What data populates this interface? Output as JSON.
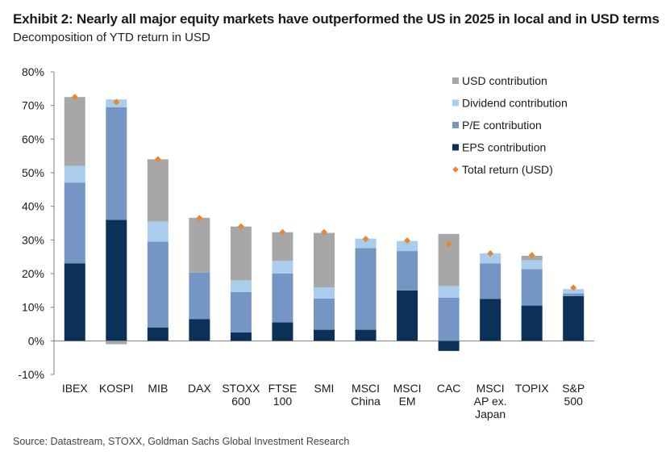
{
  "header": {
    "title": "Exhibit 2: Nearly all major equity markets have outperformed the US in 2025 in local and in USD terms",
    "subtitle": "Decomposition of YTD return in USD"
  },
  "footer": {
    "source": "Source: Datastream, STOXX, Goldman Sachs Global Investment Research"
  },
  "colors": {
    "eps": "#0b3158",
    "pe": "#7596c4",
    "dividend": "#a9cdeb",
    "usd": "#a7a7a7",
    "total": "#ec8530"
  },
  "chart_data": {
    "type": "bar",
    "stacked": true,
    "unit": "%",
    "ylim": [
      -10,
      80
    ],
    "yticks": [
      -10,
      0,
      10,
      20,
      30,
      40,
      50,
      60,
      70,
      80
    ],
    "ytick_labels": [
      "-10%",
      "0%",
      "10%",
      "20%",
      "30%",
      "40%",
      "50%",
      "60%",
      "70%",
      "80%"
    ],
    "legend_position": "top-right",
    "categories": [
      [
        "IBEX"
      ],
      [
        "KOSPI"
      ],
      [
        "MIB"
      ],
      [
        "DAX"
      ],
      [
        "STOXX",
        "600"
      ],
      [
        "FTSE",
        "100"
      ],
      [
        "SMI"
      ],
      [
        "MSCI",
        "China"
      ],
      [
        "MSCI",
        "EM"
      ],
      [
        "CAC"
      ],
      [
        "MSCI",
        "AP ex.",
        "Japan"
      ],
      [
        "TOPIX"
      ],
      [
        "S&P",
        "500"
      ]
    ],
    "series": [
      {
        "name": "EPS contribution",
        "color": "#0b3158",
        "values": [
          23,
          36,
          4,
          6.5,
          2.5,
          5.5,
          3.3,
          3.3,
          15,
          -3,
          12.5,
          10.5,
          13.3
        ]
      },
      {
        "name": "P/E contribution",
        "color": "#7596c4",
        "values": [
          24,
          33.5,
          25.5,
          13.8,
          12,
          14.5,
          9.3,
          24.3,
          11.7,
          12.8,
          10.5,
          10.8,
          0.8
        ]
      },
      {
        "name": "Dividend contribution",
        "color": "#a9cdeb",
        "values": [
          5,
          2.3,
          6,
          0,
          3.5,
          3.8,
          3.3,
          2.8,
          3,
          3.5,
          3,
          2.7,
          1.3
        ]
      },
      {
        "name": "USD contribution",
        "color": "#a7a7a7",
        "values": [
          20.5,
          -1,
          18.5,
          16.3,
          16,
          8.5,
          16.2,
          0,
          0,
          15.5,
          0,
          1.3,
          0
        ]
      }
    ],
    "total": {
      "name": "Total return (USD)",
      "color": "#ec8530",
      "values": [
        72.5,
        71,
        54,
        36.5,
        34,
        32.3,
        32.3,
        30.3,
        29.8,
        28.8,
        26,
        25.5,
        15.8
      ]
    },
    "legend": [
      "USD contribution",
      "Dividend contribution",
      "P/E contribution",
      "EPS contribution",
      "Total return (USD)"
    ]
  }
}
